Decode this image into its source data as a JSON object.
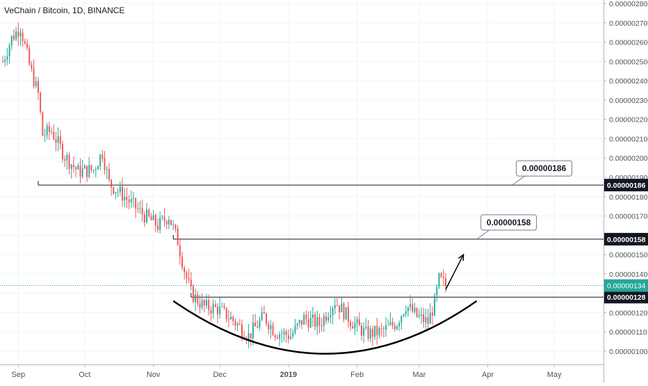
{
  "chart_data": {
    "type": "candlestick",
    "title": "VeChain / Bitcoin, 1D, BINANCE",
    "ylim": [
      9.6e-07,
      2.8e-06
    ],
    "y_ticks": [
      "0.00000100",
      "0.00000110",
      "0.00000120",
      "0.00000130",
      "0.00000140",
      "0.00000150",
      "0.00000160",
      "0.00000170",
      "0.00000180",
      "0.00000190",
      "0.00000200",
      "0.00000210",
      "0.00000220",
      "0.00000230",
      "0.00000240",
      "0.00000250",
      "0.00000260",
      "0.00000270",
      "0.00000280"
    ],
    "x_ticks": [
      {
        "label": "Sep",
        "date": "2018-09-01",
        "bold": false
      },
      {
        "label": "Oct",
        "date": "2018-10-01",
        "bold": false
      },
      {
        "label": "Nov",
        "date": "2018-11-01",
        "bold": false
      },
      {
        "label": "Dec",
        "date": "2018-12-01",
        "bold": false
      },
      {
        "label": "2019",
        "date": "2019-01-01",
        "bold": true
      },
      {
        "label": "Feb",
        "date": "2019-02-01",
        "bold": false
      },
      {
        "label": "Mar",
        "date": "2019-03-01",
        "bold": false
      },
      {
        "label": "Apr",
        "date": "2019-04-01",
        "bold": false
      },
      {
        "label": "May",
        "date": "2019-05-01",
        "bold": false
      }
    ],
    "x_range": [
      "2018-08-25",
      "2019-05-22"
    ],
    "series_ohlc_anchors": [
      {
        "date": "2018-08-25",
        "close": 2.5e-06
      },
      {
        "date": "2018-08-29",
        "close": 2.62e-06
      },
      {
        "date": "2018-09-02",
        "close": 2.68e-06
      },
      {
        "date": "2018-09-06",
        "close": 2.48e-06
      },
      {
        "date": "2018-09-10",
        "close": 2.33e-06
      },
      {
        "date": "2018-09-12",
        "close": 2.12e-06
      },
      {
        "date": "2018-09-16",
        "close": 2.14e-06
      },
      {
        "date": "2018-09-22",
        "close": 2.01e-06
      },
      {
        "date": "2018-09-28",
        "close": 1.93e-06
      },
      {
        "date": "2018-10-05",
        "close": 1.94e-06
      },
      {
        "date": "2018-10-09",
        "close": 2.03e-06
      },
      {
        "date": "2018-10-12",
        "close": 1.87e-06
      },
      {
        "date": "2018-10-18",
        "close": 1.81e-06
      },
      {
        "date": "2018-10-26",
        "close": 1.72e-06
      },
      {
        "date": "2018-11-03",
        "close": 1.65e-06
      },
      {
        "date": "2018-11-08",
        "close": 1.7e-06
      },
      {
        "date": "2018-11-12",
        "close": 1.57e-06
      },
      {
        "date": "2018-11-15",
        "close": 1.42e-06
      },
      {
        "date": "2018-11-18",
        "close": 1.3e-06
      },
      {
        "date": "2018-11-24",
        "close": 1.23e-06
      },
      {
        "date": "2018-11-30",
        "close": 1.22e-06
      },
      {
        "date": "2018-12-07",
        "close": 1.16e-06
      },
      {
        "date": "2018-12-14",
        "close": 1.08e-06
      },
      {
        "date": "2018-12-21",
        "close": 1.18e-06
      },
      {
        "date": "2018-12-26",
        "close": 1.1e-06
      },
      {
        "date": "2019-01-02",
        "close": 1.08e-06
      },
      {
        "date": "2019-01-08",
        "close": 1.17e-06
      },
      {
        "date": "2019-01-15",
        "close": 1.14e-06
      },
      {
        "date": "2019-01-22",
        "close": 1.26e-06
      },
      {
        "date": "2019-01-29",
        "close": 1.16e-06
      },
      {
        "date": "2019-02-05",
        "close": 1.09e-06
      },
      {
        "date": "2019-02-12",
        "close": 1.1e-06
      },
      {
        "date": "2019-02-19",
        "close": 1.15e-06
      },
      {
        "date": "2019-02-23",
        "close": 1.24e-06
      },
      {
        "date": "2019-02-28",
        "close": 1.18e-06
      },
      {
        "date": "2019-03-05",
        "close": 1.15e-06
      },
      {
        "date": "2019-03-08",
        "close": 1.25e-06
      },
      {
        "date": "2019-03-10",
        "close": 1.37e-06
      },
      {
        "date": "2019-03-13",
        "close": 1.34e-06
      }
    ],
    "current_price": {
      "label": "0.00000134",
      "value": 1.34e-06,
      "color": "#26a69a"
    },
    "horizontal_levels": [
      {
        "label": "0.00000186",
        "value": 1.86e-06,
        "from": "2018-09-10"
      },
      {
        "label": "0.00000158",
        "value": 1.58e-06,
        "from": "2018-11-10"
      },
      {
        "label": "0.00000128",
        "value": 1.28e-06,
        "from": "2018-11-18"
      }
    ],
    "callouts": [
      {
        "text": "0.00000186",
        "anchor_date": "2019-04-12",
        "anchor_value": 1.86e-06
      },
      {
        "text": "0.00000158",
        "anchor_date": "2019-03-27",
        "anchor_value": 1.58e-06
      }
    ],
    "up_color": "#26a69a",
    "down_color": "#ef5350",
    "grid": true
  }
}
